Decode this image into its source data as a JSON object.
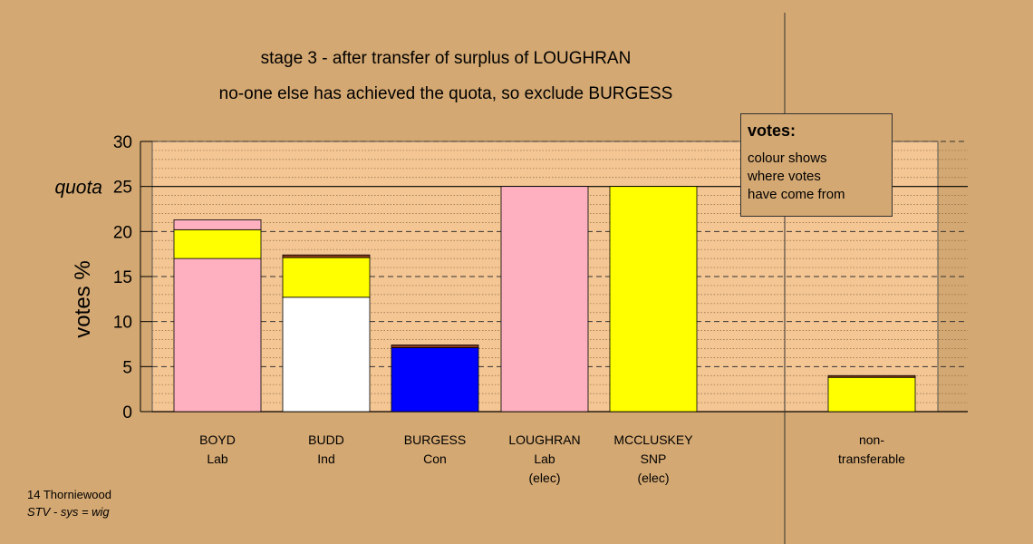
{
  "header": {
    "title": "stage 3 - after transfer of surplus of LOUGHRAN",
    "subtitle": "no-one else has achieved the quota, so exclude BURGESS"
  },
  "legend": {
    "heading": "votes:",
    "lines": [
      "colour shows",
      "where votes",
      "have come from"
    ]
  },
  "footer": {
    "line1": "14 Thorniewood",
    "line2": "STV - sys = wig"
  },
  "colors": {
    "background": "#d4a872",
    "plot_area": "#f4c694",
    "Lab": "#ffb0c0",
    "Ind": "#ffffff",
    "Con": "#0000ff",
    "SNP": "#ffff00",
    "transfer_sliver": "#8b3a1a"
  },
  "chart_data": {
    "type": "bar",
    "stacked": true,
    "ylabel": "votes %",
    "ylim": [
      0,
      30
    ],
    "yticks": [
      0,
      5,
      10,
      15,
      20,
      25,
      30
    ],
    "quota": 25,
    "quota_label": "quota",
    "grid": true,
    "bars": [
      {
        "label": [
          "BOYD",
          "Lab"
        ],
        "segments": [
          {
            "color": "Lab",
            "value": 17.0
          },
          {
            "color": "SNP",
            "value": 3.2
          },
          {
            "color": "Lab",
            "value": 1.1
          }
        ]
      },
      {
        "label": [
          "BUDD",
          "Ind"
        ],
        "segments": [
          {
            "color": "Ind",
            "value": 12.7
          },
          {
            "color": "SNP",
            "value": 4.4
          },
          {
            "color": "transfer_sliver",
            "value": 0.3
          }
        ]
      },
      {
        "label": [
          "BURGESS",
          "Con"
        ],
        "segments": [
          {
            "color": "Con",
            "value": 7.1
          },
          {
            "color": "transfer_sliver",
            "value": 0.3
          }
        ]
      },
      {
        "label": [
          "LOUGHRAN",
          "Lab",
          "(elec)"
        ],
        "segments": [
          {
            "color": "Lab",
            "value": 25.0
          }
        ]
      },
      {
        "label": [
          "MCCLUSKEY",
          "SNP",
          "(elec)"
        ],
        "segments": [
          {
            "color": "SNP",
            "value": 25.0
          }
        ]
      },
      {
        "label": [
          "non-",
          "transferable"
        ],
        "segments": [
          {
            "color": "SNP",
            "value": 3.8
          },
          {
            "color": "transfer_sliver",
            "value": 0.2
          }
        ]
      }
    ]
  }
}
